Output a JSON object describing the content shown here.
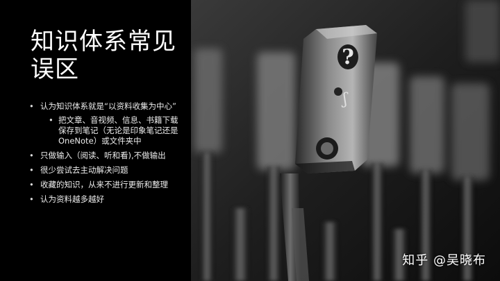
{
  "slide": {
    "title": "知识体系常见误区",
    "bullets": [
      {
        "text": "认为知识体系就是“以资料收集为中心”",
        "children": [
          "把文章、音视频、信息、书籍下载保存到笔记（无论是印象笔记还是OneNote）或文件夹中"
        ]
      },
      {
        "text": "只做输入（阅读、听和看),不做输出"
      },
      {
        "text": "很少尝试去主动解决问题"
      },
      {
        "text": "收藏的知识，从来不进行更新和整理"
      },
      {
        "text": "认为资料越多越好"
      }
    ]
  },
  "image": {
    "subject": "typewriter-keys-question-mark",
    "key_glyphs": [
      "?",
      "ʃ"
    ]
  },
  "watermark": "知乎 @吴晓布"
}
